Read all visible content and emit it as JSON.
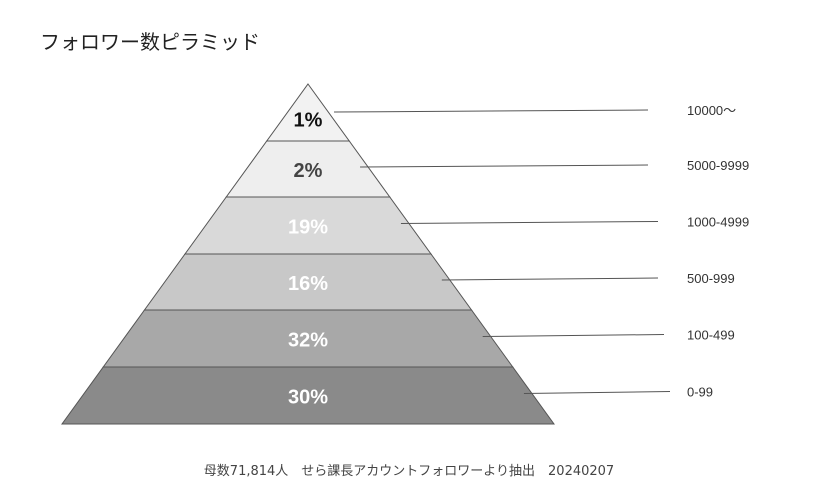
{
  "chart_data": {
    "type": "pyramid",
    "title": "フォロワー数ピラミッド",
    "categories": [
      "10000〜",
      "5000-9999",
      "1000-4999",
      "500-999",
      "100-499",
      "0-99"
    ],
    "values": [
      1,
      2,
      19,
      16,
      32,
      30
    ],
    "value_labels": [
      "1%",
      "2%",
      "19%",
      "16%",
      "32%",
      "30%"
    ],
    "unit": "%",
    "colors": [
      "#f2f2f2",
      "#eeeeee",
      "#d9d9d9",
      "#c8c8c8",
      "#a8a8a8",
      "#8a8a8a"
    ],
    "label_colors": [
      "#111111",
      "#444444",
      "#ffffff",
      "#ffffff",
      "#ffffff",
      "#ffffff"
    ],
    "legend": "right",
    "grid": false,
    "footnote": "母数71,814人　せら課長アカウントフォロワーより抽出　20240207"
  }
}
